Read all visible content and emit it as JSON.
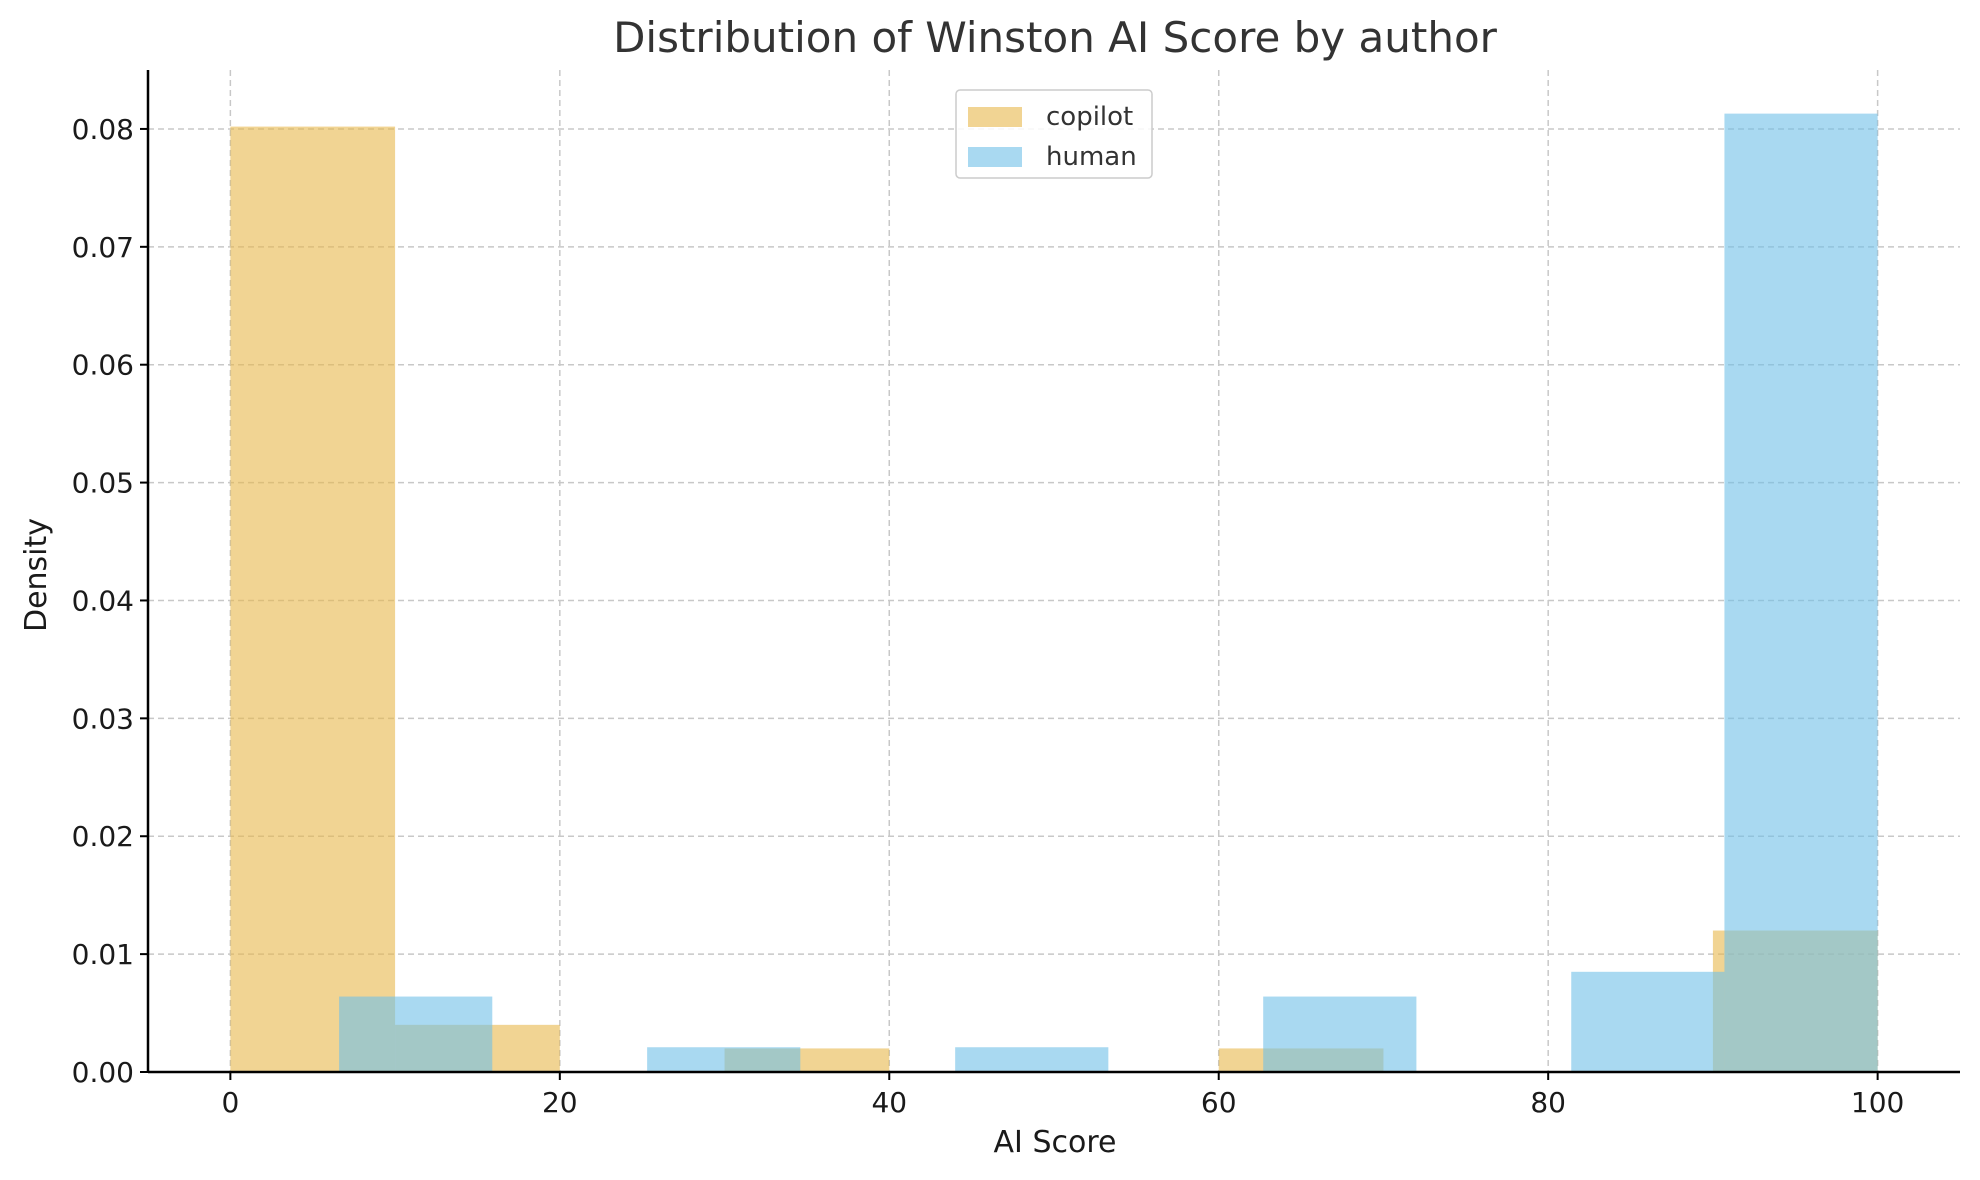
{
  "chart_data": {
    "type": "bar",
    "title": "Distribution of Winston AI Score by author",
    "xlabel": "AI Score",
    "ylabel": "Density",
    "xlim": [
      -5,
      105
    ],
    "ylim": [
      0,
      0.085
    ],
    "xticks": [
      0,
      20,
      40,
      60,
      80,
      100
    ],
    "xtick_labels": [
      "0",
      "20",
      "40",
      "60",
      "80",
      "100"
    ],
    "yticks": [
      0,
      0.01,
      0.02,
      0.03,
      0.04,
      0.05,
      0.06,
      0.07,
      0.08
    ],
    "ytick_labels": [
      "0.00",
      "0.01",
      "0.02",
      "0.03",
      "0.04",
      "0.05",
      "0.06",
      "0.07",
      "0.08"
    ],
    "grid": true,
    "legend_position": "top-center",
    "series": [
      {
        "name": "copilot",
        "color": "#e8b84b",
        "bins": [
          {
            "x0": 0,
            "x1": 10,
            "density": 0.0802
          },
          {
            "x0": 10,
            "x1": 20,
            "density": 0.004
          },
          {
            "x0": 30,
            "x1": 40,
            "density": 0.002
          },
          {
            "x0": 60,
            "x1": 70,
            "density": 0.002
          },
          {
            "x0": 90,
            "x1": 100,
            "density": 0.012
          }
        ]
      },
      {
        "name": "human",
        "color": "#6fbfe8",
        "bins": [
          {
            "x0": 6.6,
            "x1": 15.9,
            "density": 0.0064
          },
          {
            "x0": 25.3,
            "x1": 34.6,
            "density": 0.0021
          },
          {
            "x0": 44.0,
            "x1": 53.3,
            "density": 0.0021
          },
          {
            "x0": 62.7,
            "x1": 72.0,
            "density": 0.0064
          },
          {
            "x0": 81.4,
            "x1": 90.7,
            "density": 0.0085
          },
          {
            "x0": 90.7,
            "x1": 100,
            "density": 0.0813
          }
        ]
      }
    ]
  }
}
